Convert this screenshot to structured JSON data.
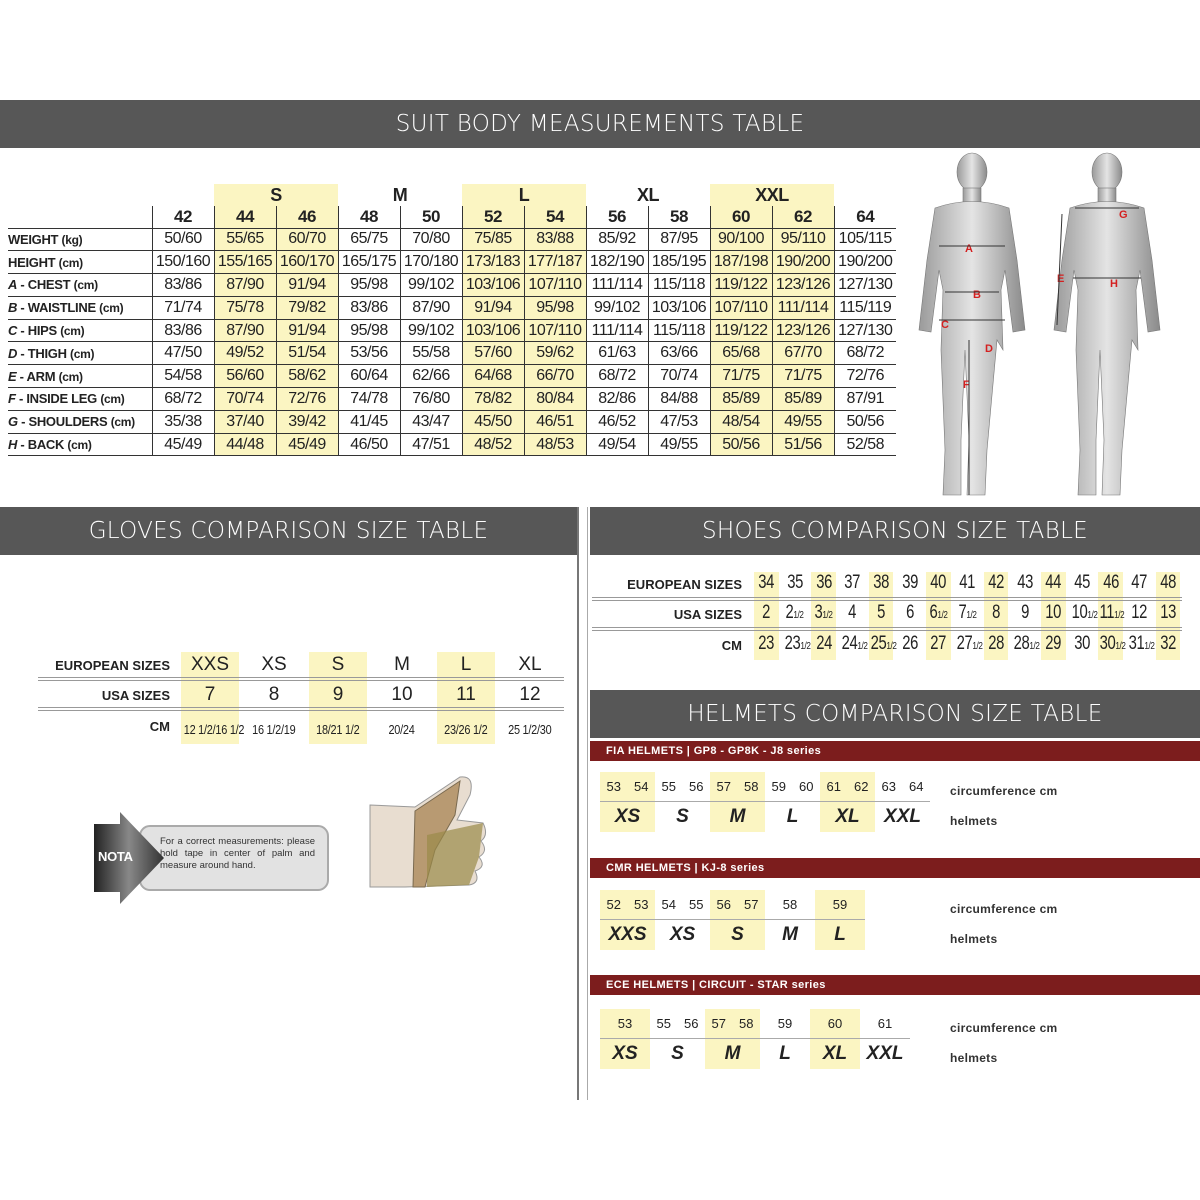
{
  "suit": {
    "title": "SUIT BODY MEASUREMENTS TABLE",
    "groups": [
      {
        "label": "",
        "cols": 1
      },
      {
        "label": "S",
        "cols": 2,
        "hl": true
      },
      {
        "label": "M",
        "cols": 2
      },
      {
        "label": "L",
        "cols": 2,
        "hl": true
      },
      {
        "label": "XL",
        "cols": 2
      },
      {
        "label": "XXL",
        "cols": 2,
        "hl": true
      },
      {
        "label": "",
        "cols": 1
      }
    ],
    "sizes": [
      "42",
      "44",
      "46",
      "48",
      "50",
      "52",
      "54",
      "56",
      "58",
      "60",
      "62",
      "64"
    ],
    "highlight_sizes": [
      "44",
      "46",
      "52",
      "54",
      "60",
      "62"
    ],
    "rows": [
      {
        "key": "",
        "label": "WEIGHT",
        "unit": "(kg)",
        "values": [
          "50/60",
          "55/65",
          "60/70",
          "65/75",
          "70/80",
          "75/85",
          "83/88",
          "85/92",
          "87/95",
          "90/100",
          "95/110",
          "105/115"
        ]
      },
      {
        "key": "",
        "label": "HEIGHT",
        "unit": "(cm)",
        "values": [
          "150/160",
          "155/165",
          "160/170",
          "165/175",
          "170/180",
          "173/183",
          "177/187",
          "182/190",
          "185/195",
          "187/198",
          "190/200",
          "190/200"
        ]
      },
      {
        "key": "A",
        "label": "CHEST",
        "unit": "(cm)",
        "values": [
          "83/86",
          "87/90",
          "91/94",
          "95/98",
          "99/102",
          "103/106",
          "107/110",
          "111/114",
          "115/118",
          "119/122",
          "123/126",
          "127/130"
        ]
      },
      {
        "key": "B",
        "label": "WAISTLINE",
        "unit": "(cm)",
        "values": [
          "71/74",
          "75/78",
          "79/82",
          "83/86",
          "87/90",
          "91/94",
          "95/98",
          "99/102",
          "103/106",
          "107/110",
          "111/114",
          "115/119"
        ]
      },
      {
        "key": "C",
        "label": "HIPS",
        "unit": "(cm)",
        "values": [
          "83/86",
          "87/90",
          "91/94",
          "95/98",
          "99/102",
          "103/106",
          "107/110",
          "111/114",
          "115/118",
          "119/122",
          "123/126",
          "127/130"
        ]
      },
      {
        "key": "D",
        "label": "THIGH",
        "unit": "(cm)",
        "values": [
          "47/50",
          "49/52",
          "51/54",
          "53/56",
          "55/58",
          "57/60",
          "59/62",
          "61/63",
          "63/66",
          "65/68",
          "67/70",
          "68/72"
        ]
      },
      {
        "key": "E",
        "label": "ARM",
        "unit": "(cm)",
        "values": [
          "54/58",
          "56/60",
          "58/62",
          "60/64",
          "62/66",
          "64/68",
          "66/70",
          "68/72",
          "70/74",
          "71/75",
          "71/75",
          "72/76"
        ]
      },
      {
        "key": "F",
        "label": "INSIDE LEG",
        "unit": "(cm)",
        "values": [
          "68/72",
          "70/74",
          "72/76",
          "74/78",
          "76/80",
          "78/82",
          "80/84",
          "82/86",
          "84/88",
          "85/89",
          "85/89",
          "87/91"
        ]
      },
      {
        "key": "G",
        "label": "SHOULDERS",
        "unit": "(cm)",
        "values": [
          "35/38",
          "37/40",
          "39/42",
          "41/45",
          "43/47",
          "45/50",
          "46/51",
          "46/52",
          "47/53",
          "48/54",
          "49/55",
          "50/56"
        ]
      },
      {
        "key": "H",
        "label": "BACK",
        "unit": "(cm)",
        "values": [
          "45/49",
          "44/48",
          "45/49",
          "46/50",
          "47/51",
          "48/52",
          "48/53",
          "49/54",
          "49/55",
          "50/56",
          "51/56",
          "52/58"
        ]
      }
    ],
    "figure_markers": [
      "A",
      "B",
      "C",
      "D",
      "E",
      "F",
      "G",
      "H"
    ],
    "marker_color": "#d42020",
    "highlight_color": "#fbf5c2"
  },
  "gloves": {
    "title": "GLOVES COMPARISON SIZE TABLE",
    "rows": [
      {
        "label": "EUROPEAN SIZES",
        "values": [
          "XXS",
          "XS",
          "S",
          "M",
          "L",
          "XL"
        ]
      },
      {
        "label": "USA SIZES",
        "values": [
          "7",
          "8",
          "9",
          "10",
          "11",
          "12"
        ]
      },
      {
        "label": "CM",
        "values": [
          "12 1/2/16 1/2",
          "16 1/2/19",
          "18/21 1/2",
          "20/24",
          "23/26 1/2",
          "25 1/2/30"
        ]
      }
    ],
    "note_badge": "NOTA",
    "note_text": "For a correct measurements: please hold tape in center of palm and measure around hand."
  },
  "shoes": {
    "title": "SHOES COMPARISON SIZE TABLE",
    "rows": [
      {
        "label": "EUROPEAN SIZES",
        "values": [
          "34",
          "35",
          "36",
          "37",
          "38",
          "39",
          "40",
          "41",
          "42",
          "43",
          "44",
          "45",
          "46",
          "47",
          "48"
        ]
      },
      {
        "label": "USA SIZES",
        "values": [
          "2",
          "2 1/2",
          "3 1/2",
          "4",
          "5",
          "6",
          "6 1/2",
          "7 1/2",
          "8",
          "9",
          "10",
          "10 1/2",
          "11 1/2",
          "12",
          "13"
        ]
      },
      {
        "label": "CM",
        "values": [
          "23",
          "23 1/2",
          "24",
          "24 1/2",
          "25 1/2",
          "26",
          "27",
          "27 1/2",
          "28",
          "28 1/2",
          "29",
          "30",
          "30 1/2",
          "31 1/2",
          "32"
        ]
      }
    ]
  },
  "helmets": {
    "title": "HELMETS COMPARISON SIZE TABLE",
    "circ_label": "circumference cm",
    "size_label": "helmets",
    "brand_color": "#7c1d1d",
    "sections": [
      {
        "title": "FIA HELMETS | GP8 - GP8K - J8 series",
        "groups": [
          {
            "size": "XS",
            "cm": [
              "53",
              "54"
            ]
          },
          {
            "size": "S",
            "cm": [
              "55",
              "56"
            ]
          },
          {
            "size": "M",
            "cm": [
              "57",
              "58"
            ]
          },
          {
            "size": "L",
            "cm": [
              "59",
              "60"
            ]
          },
          {
            "size": "XL",
            "cm": [
              "61",
              "62"
            ]
          },
          {
            "size": "XXL",
            "cm": [
              "63",
              "64"
            ]
          }
        ]
      },
      {
        "title": "CMR HELMETS | KJ-8 series",
        "groups": [
          {
            "size": "XXS",
            "cm": [
              "52",
              "53"
            ]
          },
          {
            "size": "XS",
            "cm": [
              "54",
              "55"
            ]
          },
          {
            "size": "S",
            "cm": [
              "56",
              "57"
            ]
          },
          {
            "size": "M",
            "cm": [
              "58"
            ]
          },
          {
            "size": "L",
            "cm": [
              "59"
            ]
          }
        ]
      },
      {
        "title": "ECE HELMETS | CIRCUIT - STAR series",
        "groups": [
          {
            "size": "XS",
            "cm": [
              "53"
            ]
          },
          {
            "size": "S",
            "cm": [
              "55",
              "56"
            ]
          },
          {
            "size": "M",
            "cm": [
              "57",
              "58"
            ]
          },
          {
            "size": "L",
            "cm": [
              "59"
            ]
          },
          {
            "size": "XL",
            "cm": [
              "60"
            ]
          },
          {
            "size": "XXL",
            "cm": [
              "61"
            ]
          }
        ]
      }
    ]
  }
}
